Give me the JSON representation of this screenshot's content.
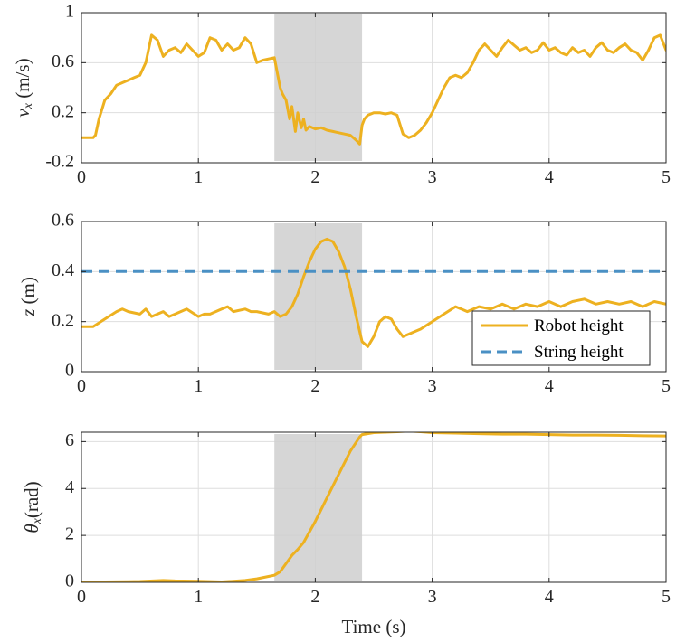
{
  "chart_data": [
    {
      "type": "line",
      "ylabel": "v_x (m/s)",
      "xlim": [
        0,
        5
      ],
      "ylim": [
        -0.2,
        1
      ],
      "xticks": [
        0,
        1,
        2,
        3,
        4,
        5
      ],
      "xtick_labels": [
        "0",
        "1",
        "2",
        "3",
        "4",
        "5"
      ],
      "yticks": [
        -0.2,
        0.2,
        0.6,
        1
      ],
      "ytick_labels": [
        "-0.2",
        "0.2",
        "0.6",
        "1"
      ],
      "grid": true,
      "shaded_region": {
        "x_start": 1.65,
        "x_end": 2.4
      },
      "series": [
        {
          "name": "v_x",
          "color": "#EDB120",
          "style": "solid",
          "x": [
            0,
            0.1,
            0.12,
            0.15,
            0.2,
            0.25,
            0.3,
            0.35,
            0.4,
            0.45,
            0.5,
            0.55,
            0.6,
            0.65,
            0.7,
            0.75,
            0.8,
            0.85,
            0.9,
            0.95,
            1.0,
            1.05,
            1.1,
            1.15,
            1.2,
            1.25,
            1.3,
            1.35,
            1.4,
            1.45,
            1.5,
            1.55,
            1.6,
            1.65,
            1.7,
            1.72,
            1.75,
            1.78,
            1.8,
            1.83,
            1.85,
            1.88,
            1.9,
            1.92,
            1.95,
            2.0,
            2.05,
            2.1,
            2.15,
            2.2,
            2.25,
            2.3,
            2.35,
            2.38,
            2.4,
            2.42,
            2.45,
            2.5,
            2.55,
            2.6,
            2.65,
            2.7,
            2.75,
            2.8,
            2.85,
            2.9,
            2.95,
            3.0,
            3.05,
            3.1,
            3.15,
            3.2,
            3.25,
            3.3,
            3.35,
            3.4,
            3.45,
            3.5,
            3.55,
            3.6,
            3.65,
            3.7,
            3.75,
            3.8,
            3.85,
            3.9,
            3.95,
            4.0,
            4.05,
            4.1,
            4.15,
            4.2,
            4.25,
            4.3,
            4.35,
            4.4,
            4.45,
            4.5,
            4.55,
            4.6,
            4.65,
            4.7,
            4.75,
            4.8,
            4.85,
            4.9,
            4.95,
            5.0
          ],
          "y": [
            0,
            0,
            0.02,
            0.15,
            0.3,
            0.35,
            0.42,
            0.44,
            0.46,
            0.48,
            0.5,
            0.6,
            0.82,
            0.78,
            0.65,
            0.7,
            0.72,
            0.68,
            0.75,
            0.7,
            0.65,
            0.68,
            0.8,
            0.78,
            0.7,
            0.75,
            0.7,
            0.72,
            0.8,
            0.75,
            0.6,
            0.62,
            0.63,
            0.64,
            0.4,
            0.35,
            0.3,
            0.15,
            0.25,
            0.05,
            0.2,
            0.08,
            0.15,
            0.06,
            0.09,
            0.07,
            0.08,
            0.06,
            0.05,
            0.04,
            0.03,
            0.02,
            -0.02,
            -0.05,
            0.1,
            0.15,
            0.18,
            0.2,
            0.2,
            0.19,
            0.2,
            0.18,
            0.03,
            0.0,
            0.02,
            0.06,
            0.12,
            0.2,
            0.3,
            0.4,
            0.48,
            0.5,
            0.48,
            0.52,
            0.6,
            0.7,
            0.75,
            0.7,
            0.65,
            0.72,
            0.78,
            0.74,
            0.7,
            0.72,
            0.68,
            0.7,
            0.76,
            0.7,
            0.72,
            0.68,
            0.66,
            0.72,
            0.68,
            0.7,
            0.65,
            0.72,
            0.76,
            0.7,
            0.68,
            0.72,
            0.75,
            0.7,
            0.68,
            0.62,
            0.7,
            0.8,
            0.82,
            0.7
          ]
        }
      ]
    },
    {
      "type": "line",
      "ylabel": "z (m)",
      "xlim": [
        0,
        5
      ],
      "ylim": [
        0,
        0.6
      ],
      "xticks": [
        0,
        1,
        2,
        3,
        4,
        5
      ],
      "xtick_labels": [
        "0",
        "1",
        "2",
        "3",
        "4",
        "5"
      ],
      "yticks": [
        0,
        0.2,
        0.4,
        0.6
      ],
      "ytick_labels": [
        "0",
        "0.2",
        "0.4",
        "0.6"
      ],
      "grid": true,
      "shaded_region": {
        "x_start": 1.65,
        "x_end": 2.4
      },
      "legend_position": "bottom-right",
      "series": [
        {
          "name": "Robot height",
          "color": "#EDB120",
          "style": "solid",
          "x": [
            0,
            0.1,
            0.2,
            0.3,
            0.35,
            0.4,
            0.5,
            0.55,
            0.6,
            0.7,
            0.75,
            0.8,
            0.9,
            1.0,
            1.05,
            1.1,
            1.2,
            1.25,
            1.3,
            1.4,
            1.45,
            1.5,
            1.6,
            1.65,
            1.7,
            1.75,
            1.8,
            1.85,
            1.9,
            1.95,
            2.0,
            2.05,
            2.1,
            2.15,
            2.2,
            2.25,
            2.3,
            2.35,
            2.4,
            2.45,
            2.5,
            2.55,
            2.6,
            2.65,
            2.7,
            2.75,
            2.8,
            2.85,
            2.9,
            3.0,
            3.1,
            3.2,
            3.3,
            3.4,
            3.5,
            3.6,
            3.7,
            3.8,
            3.9,
            4.0,
            4.1,
            4.2,
            4.3,
            4.4,
            4.5,
            4.6,
            4.7,
            4.8,
            4.9,
            5.0
          ],
          "y": [
            0.18,
            0.18,
            0.21,
            0.24,
            0.25,
            0.24,
            0.23,
            0.25,
            0.22,
            0.24,
            0.22,
            0.23,
            0.25,
            0.22,
            0.23,
            0.23,
            0.25,
            0.26,
            0.24,
            0.25,
            0.24,
            0.24,
            0.23,
            0.24,
            0.22,
            0.23,
            0.26,
            0.31,
            0.38,
            0.44,
            0.49,
            0.52,
            0.53,
            0.52,
            0.48,
            0.42,
            0.33,
            0.22,
            0.12,
            0.1,
            0.14,
            0.2,
            0.22,
            0.21,
            0.17,
            0.14,
            0.15,
            0.16,
            0.17,
            0.2,
            0.23,
            0.26,
            0.24,
            0.26,
            0.25,
            0.27,
            0.25,
            0.27,
            0.26,
            0.28,
            0.26,
            0.28,
            0.29,
            0.27,
            0.28,
            0.27,
            0.28,
            0.26,
            0.28,
            0.27
          ]
        },
        {
          "name": "String height",
          "color": "#4A90C4",
          "style": "dashed",
          "x": [
            0,
            5
          ],
          "y": [
            0.4,
            0.4
          ]
        }
      ]
    },
    {
      "type": "line",
      "ylabel": "θ_x (rad)",
      "xlabel": "Time (s)",
      "xlim": [
        0,
        5
      ],
      "ylim": [
        0,
        6.4
      ],
      "xticks": [
        0,
        1,
        2,
        3,
        4,
        5
      ],
      "xtick_labels": [
        "0",
        "1",
        "2",
        "3",
        "4",
        "5"
      ],
      "yticks": [
        0,
        2,
        4,
        6
      ],
      "ytick_labels": [
        "0",
        "2",
        "4",
        "6"
      ],
      "grid": true,
      "shaded_region": {
        "x_start": 1.65,
        "x_end": 2.4
      },
      "series": [
        {
          "name": "θ_x",
          "color": "#EDB120",
          "style": "solid",
          "x": [
            0,
            0.2,
            0.4,
            0.5,
            0.7,
            0.8,
            1.0,
            1.2,
            1.4,
            1.5,
            1.6,
            1.65,
            1.7,
            1.75,
            1.8,
            1.85,
            1.9,
            2.0,
            2.1,
            2.2,
            2.3,
            2.38,
            2.4,
            2.5,
            2.6,
            2.7,
            2.8,
            2.9,
            3.0,
            3.2,
            3.4,
            3.6,
            3.8,
            4.0,
            4.2,
            4.4,
            4.6,
            4.8,
            5.0
          ],
          "y": [
            0.0,
            0.02,
            0.03,
            0.04,
            0.08,
            0.06,
            0.05,
            0.02,
            0.08,
            0.15,
            0.25,
            0.3,
            0.45,
            0.8,
            1.15,
            1.4,
            1.7,
            2.6,
            3.6,
            4.6,
            5.6,
            6.2,
            6.3,
            6.38,
            6.4,
            6.42,
            6.45,
            6.42,
            6.38,
            6.36,
            6.34,
            6.32,
            6.32,
            6.3,
            6.28,
            6.28,
            6.27,
            6.25,
            6.24
          ]
        }
      ]
    }
  ]
}
